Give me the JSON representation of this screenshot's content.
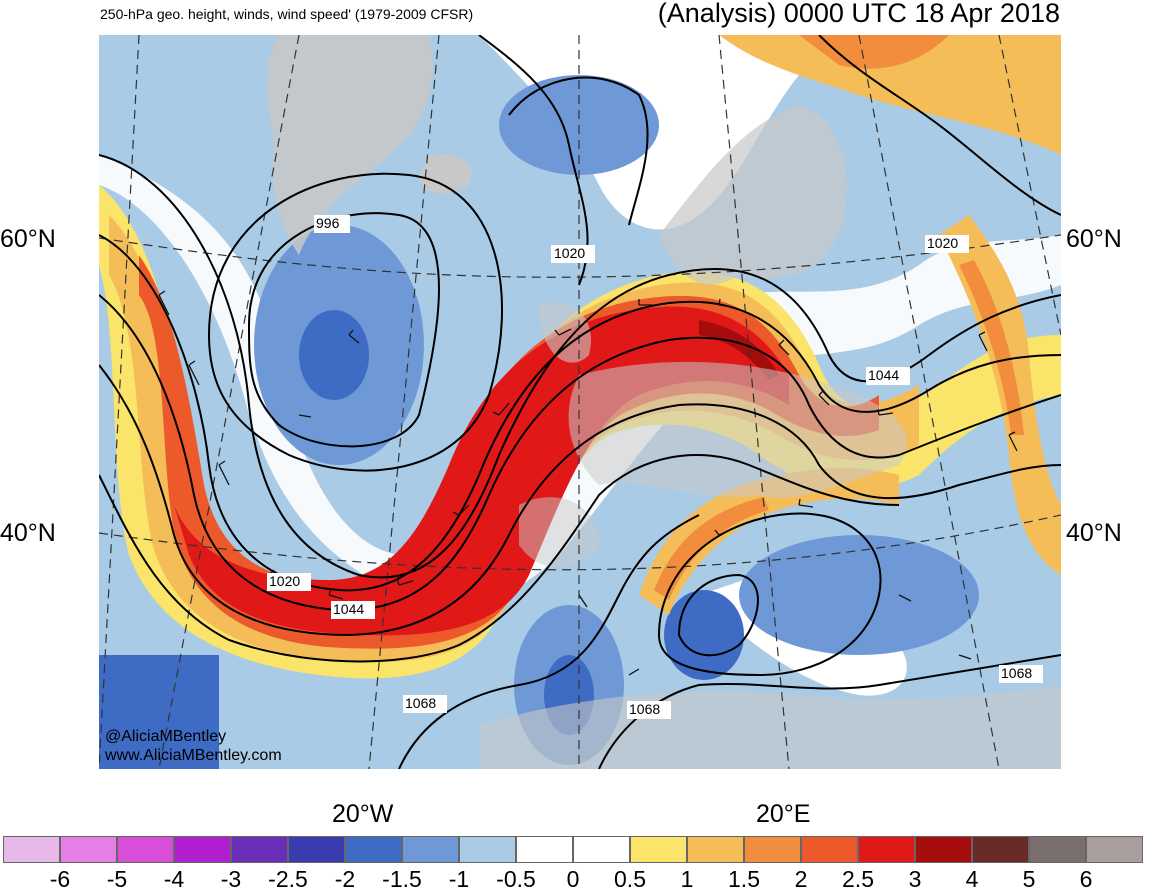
{
  "header": {
    "title_left": "250-hPa geo. height, winds, wind speed' (1979-2009 CFSR)",
    "title_right": "(Analysis) 0000 UTC 18 Apr 2018"
  },
  "lat_labels": {
    "n60": "60°N",
    "n40": "40°N"
  },
  "lon_labels": {
    "w20": "20°W",
    "e20": "20°E"
  },
  "contour_labels": [
    "996",
    "1020",
    "1020",
    "1020",
    "1044",
    "1044",
    "1068",
    "1068",
    "1068"
  ],
  "credits": {
    "handle": "@AliciaMBentley",
    "site": "www.AliciaMBentley.com"
  },
  "colorbar": {
    "ticks": [
      "-6",
      "-5",
      "-4",
      "-3",
      "-2.5",
      "-2",
      "-1.5",
      "-1",
      "-0.5",
      "0",
      "0.5",
      "1",
      "1.5",
      "2",
      "2.5",
      "3",
      "4",
      "5",
      "6"
    ],
    "colors": [
      "#e8b8e8",
      "#e67ee6",
      "#d94ed9",
      "#b01ed0",
      "#6a2eb8",
      "#3b3bb0",
      "#3e6cc4",
      "#6f99d6",
      "#a9cbe6",
      "#ffffff",
      "#ffffff",
      "#fbe46a",
      "#f5bd58",
      "#f18d3c",
      "#ec5a2c",
      "#e01818",
      "#a50c0c",
      "#6b2a2a",
      "#7a6e6e",
      "#a89e9e"
    ]
  },
  "palette": {
    "land": "#c8c8c8",
    "jet_core": "#e01818",
    "contour": "#000000"
  }
}
